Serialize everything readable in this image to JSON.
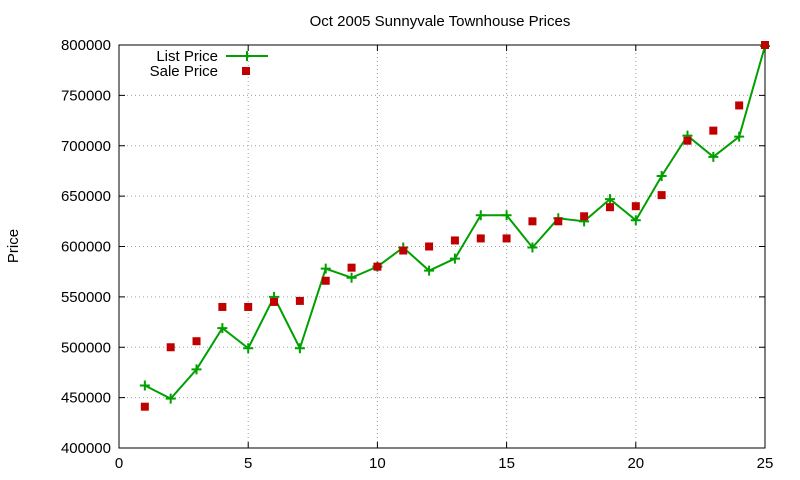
{
  "chart_data": {
    "type": "line",
    "title": "Oct 2005 Sunnyvale Townhouse Prices",
    "xlabel": "",
    "ylabel": "Price",
    "xlim": [
      0,
      25
    ],
    "ylim": [
      400000,
      800000
    ],
    "xticks": [
      "0",
      "5",
      "10",
      "15",
      "20",
      "25"
    ],
    "yticks": [
      "400000",
      "450000",
      "500000",
      "550000",
      "600000",
      "650000",
      "700000",
      "750000",
      "800000"
    ],
    "grid": true,
    "legend_position": "top-left",
    "x": [
      1,
      2,
      3,
      4,
      5,
      6,
      7,
      8,
      9,
      10,
      11,
      12,
      13,
      14,
      15,
      16,
      17,
      18,
      19,
      20,
      21,
      22,
      23,
      24,
      25
    ],
    "series": [
      {
        "name": "List Price",
        "style": "line with plus markers",
        "color": "#00a000",
        "values": [
          462000,
          449000,
          478000,
          519000,
          499000,
          550000,
          499000,
          578000,
          569000,
          580000,
          599000,
          576000,
          588000,
          631000,
          631000,
          599000,
          628000,
          625000,
          647000,
          626000,
          670000,
          710000,
          689000,
          709000,
          799000
        ]
      },
      {
        "name": "Sale Price",
        "style": "square markers",
        "color": "#c00000",
        "values": [
          441000,
          500000,
          506000,
          540000,
          540000,
          545000,
          546000,
          566000,
          579000,
          580000,
          596000,
          600000,
          606000,
          608000,
          608000,
          625000,
          625000,
          630000,
          639000,
          640000,
          651000,
          705000,
          715000,
          740000,
          800000
        ]
      }
    ]
  }
}
